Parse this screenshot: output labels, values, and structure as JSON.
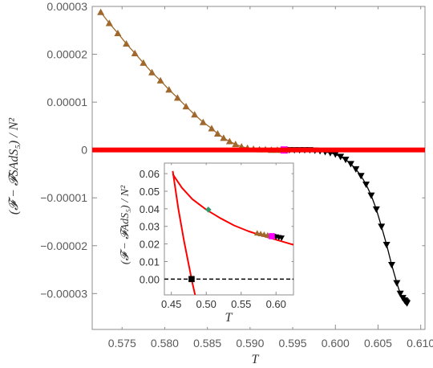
{
  "chart_data": [
    {
      "type": "line",
      "xlabel": "T",
      "ylabel": "(𝓕 − 𝓕SAdS₅) / N²",
      "xlim": [
        0.5715,
        0.6105
      ],
      "ylim": [
        -3.75e-05,
        3e-05
      ],
      "x_ticks": [
        0.575,
        0.58,
        0.585,
        0.59,
        0.595,
        0.6,
        0.605,
        0.61
      ],
      "x_tick_labels": [
        "0.575",
        "0.580",
        "0.585",
        "0.590",
        "0.595",
        "0.600",
        "0.605",
        "0.610"
      ],
      "y_ticks": [
        3e-05,
        2e-05,
        1e-05,
        0,
        -1e-05,
        -2e-05,
        -3e-05
      ],
      "y_tick_labels": [
        "0.00003",
        "0.00002",
        "0.00001",
        "0",
        "−0.00001",
        "−0.00002",
        "−0.00003"
      ],
      "grid": false,
      "series": [
        {
          "color": "#a0682c",
          "marker": "triangle-up",
          "x": [
            0.5725,
            0.5735,
            0.5745,
            0.5755,
            0.5765,
            0.5775,
            0.5785,
            0.5795,
            0.5805,
            0.5815,
            0.5825,
            0.5835,
            0.5845,
            0.5855,
            0.5862,
            0.5869,
            0.5876,
            0.5883,
            0.589,
            0.5897,
            0.5904,
            0.5911,
            0.5918,
            0.5925,
            0.5932,
            0.5938
          ],
          "y": [
            2.88e-05,
            2.65e-05,
            2.44e-05,
            2.22e-05,
            2.02e-05,
            1.82e-05,
            1.62e-05,
            1.45e-05,
            1.26e-05,
            1.09e-05,
            9.1e-06,
            7.4e-06,
            5.8e-06,
            4.5e-06,
            3.4e-06,
            2.5e-06,
            1.8e-06,
            1.2e-06,
            7e-07,
            4e-07,
            2e-07,
            1e-07,
            1e-07,
            0.0,
            0.0,
            0.0
          ]
        },
        {
          "color": "#000000",
          "marker": "triangle-down",
          "x": [
            0.5941,
            0.5946,
            0.5952,
            0.5958,
            0.5964,
            0.597,
            0.5976,
            0.5982,
            0.5988,
            0.5994,
            0.6,
            0.6006,
            0.6012,
            0.6018,
            0.6024,
            0.603,
            0.6036,
            0.6042,
            0.6048,
            0.6054,
            0.606,
            0.6066,
            0.6072,
            0.6076,
            0.6079,
            0.6081,
            0.6082,
            0.6083,
            0.6084
          ],
          "y": [
            0.0,
            0.0,
            0.0,
            0.0,
            0.0,
            0.0,
            -1e-07,
            -2e-07,
            -4e-07,
            -6e-07,
            -9e-07,
            -1.4e-06,
            -2e-06,
            -2.9e-06,
            -4e-06,
            -5.4e-06,
            -7.2e-06,
            -9.5e-06,
            -1.24e-05,
            -1.6e-05,
            -1.98e-05,
            -2.4e-05,
            -2.78e-05,
            -3e-05,
            -3.09e-05,
            -3.14e-05,
            -3.16e-05,
            -3.18e-05,
            -3.2e-05
          ]
        },
        {
          "color": "#ff00ff",
          "marker": "square",
          "x": [
            0.594
          ],
          "y": [
            0.0
          ]
        },
        {
          "color": "#ff0000",
          "marker": "none",
          "x": [
            0.5715,
            0.6105
          ],
          "y": [
            0,
            0
          ]
        }
      ]
    },
    {
      "type": "line",
      "xlabel": "T",
      "ylabel": "(𝓕 − 𝓕AdS₅) / N²",
      "xlim": [
        0.44,
        0.625
      ],
      "ylim": [
        -0.009,
        0.066
      ],
      "x_ticks": [
        0.45,
        0.5,
        0.55,
        0.6
      ],
      "x_tick_labels": [
        "0.45",
        "0.50",
        "0.55",
        "0.60"
      ],
      "y_ticks": [
        0.0,
        0.01,
        0.02,
        0.03,
        0.04,
        0.05,
        0.06
      ],
      "y_tick_labels": [
        "0.00",
        "0.01",
        "0.02",
        "0.03",
        "0.04",
        "0.05",
        "0.06"
      ],
      "grid": false,
      "series": [
        {
          "color": "#ff0000",
          "marker": "none",
          "x": [
            0.452,
            0.465,
            0.48,
            0.5,
            0.52,
            0.54,
            0.56,
            0.58,
            0.6,
            0.625
          ],
          "y": [
            0.0597,
            0.052,
            0.0455,
            0.0395,
            0.0347,
            0.0305,
            0.0273,
            0.0247,
            0.0224,
            0.0195
          ]
        },
        {
          "color": "#ff0000",
          "marker": "none",
          "x": [
            0.452,
            0.46,
            0.468,
            0.474,
            0.48,
            0.484
          ],
          "y": [
            0.0615,
            0.04,
            0.022,
            0.01,
            -0.002,
            -0.009
          ]
        },
        {
          "color": "#000000",
          "marker": "dashed",
          "x": [
            0.44,
            0.625
          ],
          "y": [
            0,
            0
          ]
        },
        {
          "color": "#000000",
          "marker": "square",
          "x": [
            0.479
          ],
          "y": [
            0.0
          ]
        },
        {
          "color": "#2e9b6a",
          "marker": "diamond",
          "x": [
            0.503
          ],
          "y": [
            0.0395
          ]
        },
        {
          "color": "#a0682c",
          "marker": "triangle-up",
          "x": [
            0.573,
            0.578,
            0.583,
            0.588,
            0.592
          ],
          "y": [
            0.0262,
            0.0258,
            0.0254,
            0.025,
            0.0246
          ]
        },
        {
          "color": "#000000",
          "marker": "triangle-down",
          "x": [
            0.596,
            0.6,
            0.604,
            0.608
          ],
          "y": [
            0.0243,
            0.024,
            0.0237,
            0.0234
          ]
        },
        {
          "color": "#ff00ff",
          "marker": "square",
          "x": [
            0.594
          ],
          "y": [
            0.0244
          ]
        }
      ]
    }
  ]
}
